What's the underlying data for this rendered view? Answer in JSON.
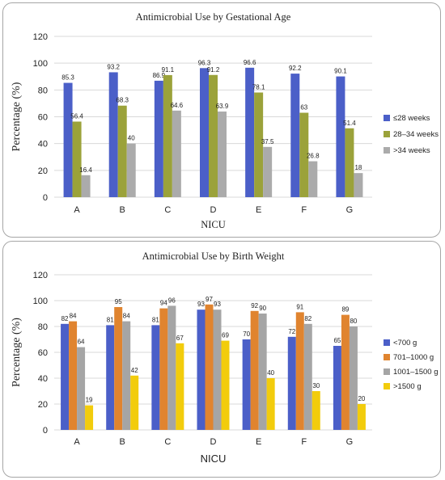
{
  "chart_data": [
    {
      "type": "bar",
      "title": "Antimicrobial Use by Gestational Age",
      "xlabel": "NICU",
      "ylabel": "Percentage (%)",
      "ylim": [
        0,
        120
      ],
      "yticks": [
        0,
        20,
        40,
        60,
        80,
        100,
        120
      ],
      "grid": true,
      "legend_position": "right",
      "categories": [
        "A",
        "B",
        "C",
        "D",
        "E",
        "F",
        "G"
      ],
      "series": [
        {
          "name": "≤28 weeks",
          "color": "#4B5FC8",
          "values": [
            85.3,
            93.2,
            86.9,
            96.3,
            96.6,
            92.2,
            90.1
          ]
        },
        {
          "name": "28–34 weeks",
          "color": "#9BA23A",
          "values": [
            56.4,
            68.3,
            91.1,
            91.2,
            78.1,
            63,
            51.4
          ]
        },
        {
          "name": ">34 weeks",
          "color": "#ABABAB",
          "values": [
            16.4,
            40,
            64.6,
            63.9,
            37.5,
            26.8,
            18
          ]
        }
      ],
      "data_labels": [
        [
          "85.3",
          "93.2",
          "86.9",
          "96.3",
          "96.6",
          "92.2",
          "90.1"
        ],
        [
          "56.4",
          "68.3",
          "91.1",
          "91.2",
          "78.1",
          "63",
          "51.4"
        ],
        [
          "16.4",
          "40",
          "64.6",
          "63.9",
          "37.5",
          "26.8",
          "18"
        ]
      ]
    },
    {
      "type": "bar",
      "title": "Antimicrobial Use by Birth Weight",
      "xlabel": "NICU",
      "ylabel": "Percentage (%)",
      "ylim": [
        0,
        120
      ],
      "yticks": [
        0,
        20,
        40,
        60,
        80,
        100,
        120
      ],
      "grid": true,
      "legend_position": "right",
      "categories": [
        "A",
        "B",
        "C",
        "D",
        "E",
        "F",
        "G"
      ],
      "series": [
        {
          "name": "<700 g",
          "color": "#4B5FC8",
          "values": [
            82,
            81,
            81,
            93,
            70,
            72,
            65
          ]
        },
        {
          "name": "701–1000 g",
          "color": "#E0842F",
          "values": [
            84,
            95,
            94,
            97,
            92,
            91,
            89
          ]
        },
        {
          "name": "1001–1500 g",
          "color": "#A5A5A5",
          "values": [
            64,
            84,
            96,
            93,
            90,
            82,
            80
          ]
        },
        {
          "name": ">1500 g",
          "color": "#F2CC0C",
          "values": [
            19,
            42,
            67,
            69,
            40,
            30,
            20
          ]
        }
      ],
      "data_labels": [
        [
          "82",
          "81",
          "81",
          "93",
          "70",
          "72",
          "65"
        ],
        [
          "84",
          "95",
          "94",
          "97",
          "92",
          "91",
          "89"
        ],
        [
          "64",
          "84",
          "96",
          "93",
          "90",
          "82",
          "80"
        ],
        [
          "19",
          "42",
          "67",
          "69",
          "40",
          "30",
          "20"
        ]
      ]
    }
  ]
}
